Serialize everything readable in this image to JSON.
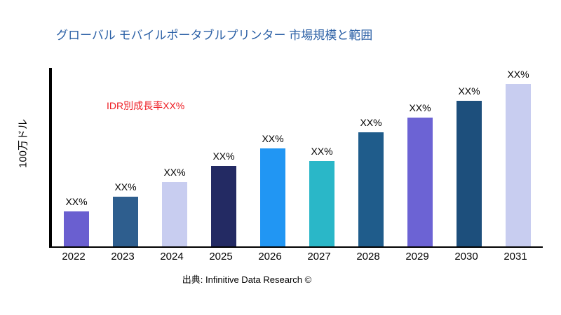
{
  "title": "グローバル モバイルポータブルプリンター 市場規模と範囲",
  "annotation": {
    "text": "IDR別成長率XX%"
  },
  "y_axis_label": "100万ドル",
  "footer": "出典: Infinitive Data Research ©",
  "colors": {
    "title": "#2a5fa5",
    "annotation": "#ee1d23",
    "axis": "#000000"
  },
  "chart_data": {
    "type": "bar",
    "title": "グローバル モバイルポータブルプリンター 市場規模と範囲",
    "categories": [
      "2022",
      "2023",
      "2024",
      "2025",
      "2026",
      "2027",
      "2028",
      "2029",
      "2030",
      "2031"
    ],
    "values": [
      50,
      71,
      92,
      115,
      140,
      122,
      163,
      184,
      208,
      232
    ],
    "bar_labels": [
      "XX%",
      "XX%",
      "XX%",
      "XX%",
      "XX%",
      "XX%",
      "XX%",
      "XX%",
      "XX%",
      "XX%"
    ],
    "bar_colors": [
      "#6a5fd0",
      "#2e5e8e",
      "#c8cdf0",
      "#232a63",
      "#2196f3",
      "#2ab7c8",
      "#1f5c8b",
      "#6c63d4",
      "#1d4f7c",
      "#c8cdf0"
    ],
    "xlabel": "",
    "ylabel": "100万ドル",
    "ylim": [
      0,
      255
    ],
    "grid": false,
    "legend": false,
    "annotations": [
      "IDR別成長率XX%"
    ]
  }
}
